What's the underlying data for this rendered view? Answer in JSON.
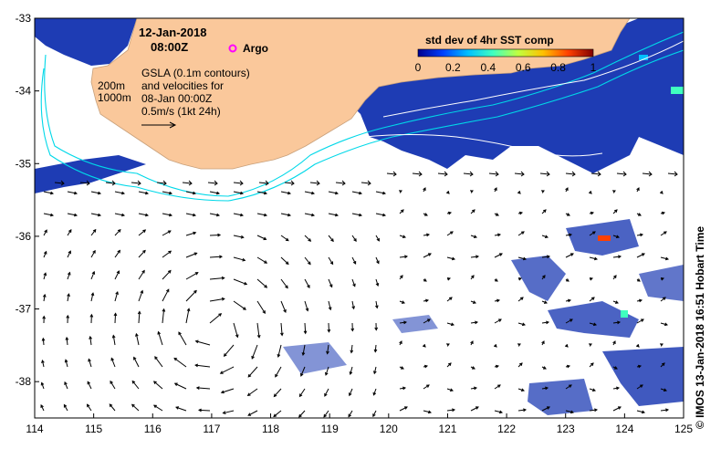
{
  "header": {
    "date": "12-Jan-2018",
    "time": "08:00Z",
    "argo_label": "Argo"
  },
  "annotation": {
    "contour_200": "200m",
    "contour_1000": "1000m",
    "gsla_lines": [
      "GSLA (0.1m contours)",
      "and velocities for",
      "08-Jan 00:00Z",
      "0.5m/s (1kt 24h)"
    ]
  },
  "colorbar": {
    "title": "std dev of 4hr SST comp",
    "ticks": [
      "0",
      "0.2",
      "0.4",
      "0.6",
      "0.8",
      "1"
    ],
    "colors": [
      "#00008f",
      "#0040ff",
      "#00c0ff",
      "#40ffbf",
      "#c0ff40",
      "#ffc000",
      "#ff4000",
      "#800000"
    ]
  },
  "axes": {
    "x_ticks": [
      "114",
      "115",
      "116",
      "117",
      "118",
      "119",
      "120",
      "121",
      "122",
      "123",
      "124",
      "125"
    ],
    "y_ticks": [
      "-33",
      "-34",
      "-35",
      "-36",
      "-37",
      "-38"
    ],
    "xlim": [
      114,
      125
    ],
    "ylim": [
      -38.5,
      -33
    ]
  },
  "credit": "© IMOS 13-Jan-2018 16:51 Hobart Time",
  "colors": {
    "land": "#fac89b",
    "sst_patch": "#1e3cb4",
    "contour": "#00d8e8",
    "gsla": "#ffffff",
    "argo": "#ff00ff"
  }
}
